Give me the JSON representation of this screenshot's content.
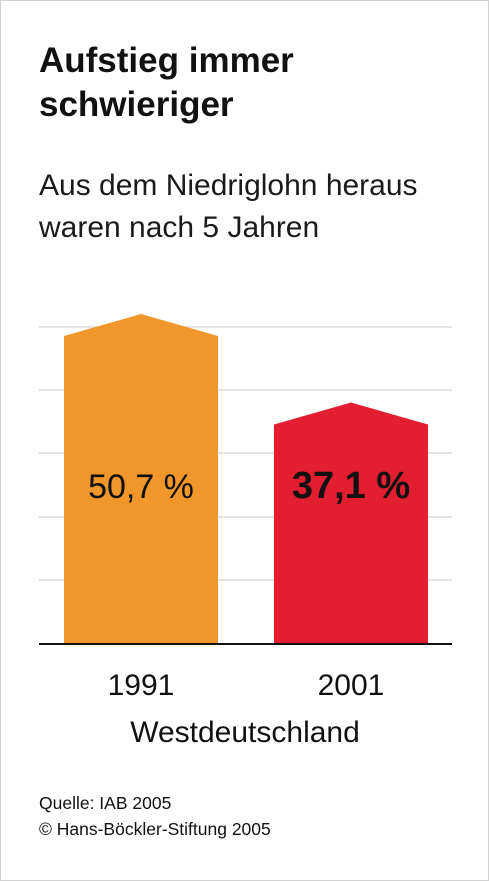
{
  "title_line1": "Aufstieg immer",
  "title_line2": "schwieriger",
  "subtitle_line1": "Aus dem Niedriglohn heraus",
  "subtitle_line2": "waren nach 5 Jahren",
  "source": "Quelle: IAB 2005",
  "copyright": "© Hans-Böckler-Stiftung 2005",
  "chart_data": {
    "type": "bar",
    "categories": [
      "1991",
      "2001"
    ],
    "values": [
      50.7,
      37.1
    ],
    "value_labels": [
      "50,7 %",
      "37,1 %"
    ],
    "colors": [
      "#f0962a",
      "#e31e31"
    ],
    "xlabel": "Westdeutschland",
    "ylabel": "",
    "ylim": [
      0,
      50.7
    ],
    "grid": true
  }
}
